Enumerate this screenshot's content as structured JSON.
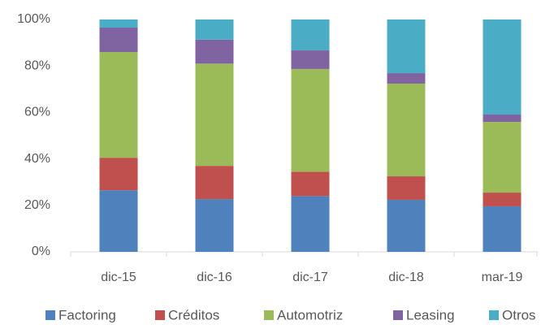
{
  "chart_data": {
    "type": "stacked_bar",
    "categories": [
      "dic-15",
      "dic-16",
      "dic-17",
      "dic-18",
      "mar-19"
    ],
    "series": [
      {
        "name": "Factoring",
        "color": "#4f81bd",
        "values": [
          26.5,
          22.7,
          24,
          22.4,
          19.6
        ]
      },
      {
        "name": "Créditos",
        "color": "#c0504d",
        "values": [
          14,
          14.3,
          10.5,
          10.1,
          5.9
        ]
      },
      {
        "name": "Automotriz",
        "color": "#9bbb59",
        "values": [
          45.5,
          44,
          44.2,
          39.9,
          30.4
        ]
      },
      {
        "name": "Leasing",
        "color": "#8064a2",
        "values": [
          10.5,
          10.3,
          8,
          4.5,
          3.2
        ]
      },
      {
        "name": "Otros",
        "color": "#4bacc6",
        "values": [
          3.5,
          8.7,
          13.3,
          23.1,
          40.9
        ]
      }
    ],
    "ylim": [
      0,
      100
    ],
    "yticks": [
      {
        "value": 0,
        "label": "0%"
      },
      {
        "value": 20,
        "label": "20%"
      },
      {
        "value": 40,
        "label": "40%"
      },
      {
        "value": 60,
        "label": "60%"
      },
      {
        "value": 80,
        "label": "80%"
      },
      {
        "value": 100,
        "label": "100%"
      }
    ],
    "grid": false,
    "legend": "bottom"
  }
}
